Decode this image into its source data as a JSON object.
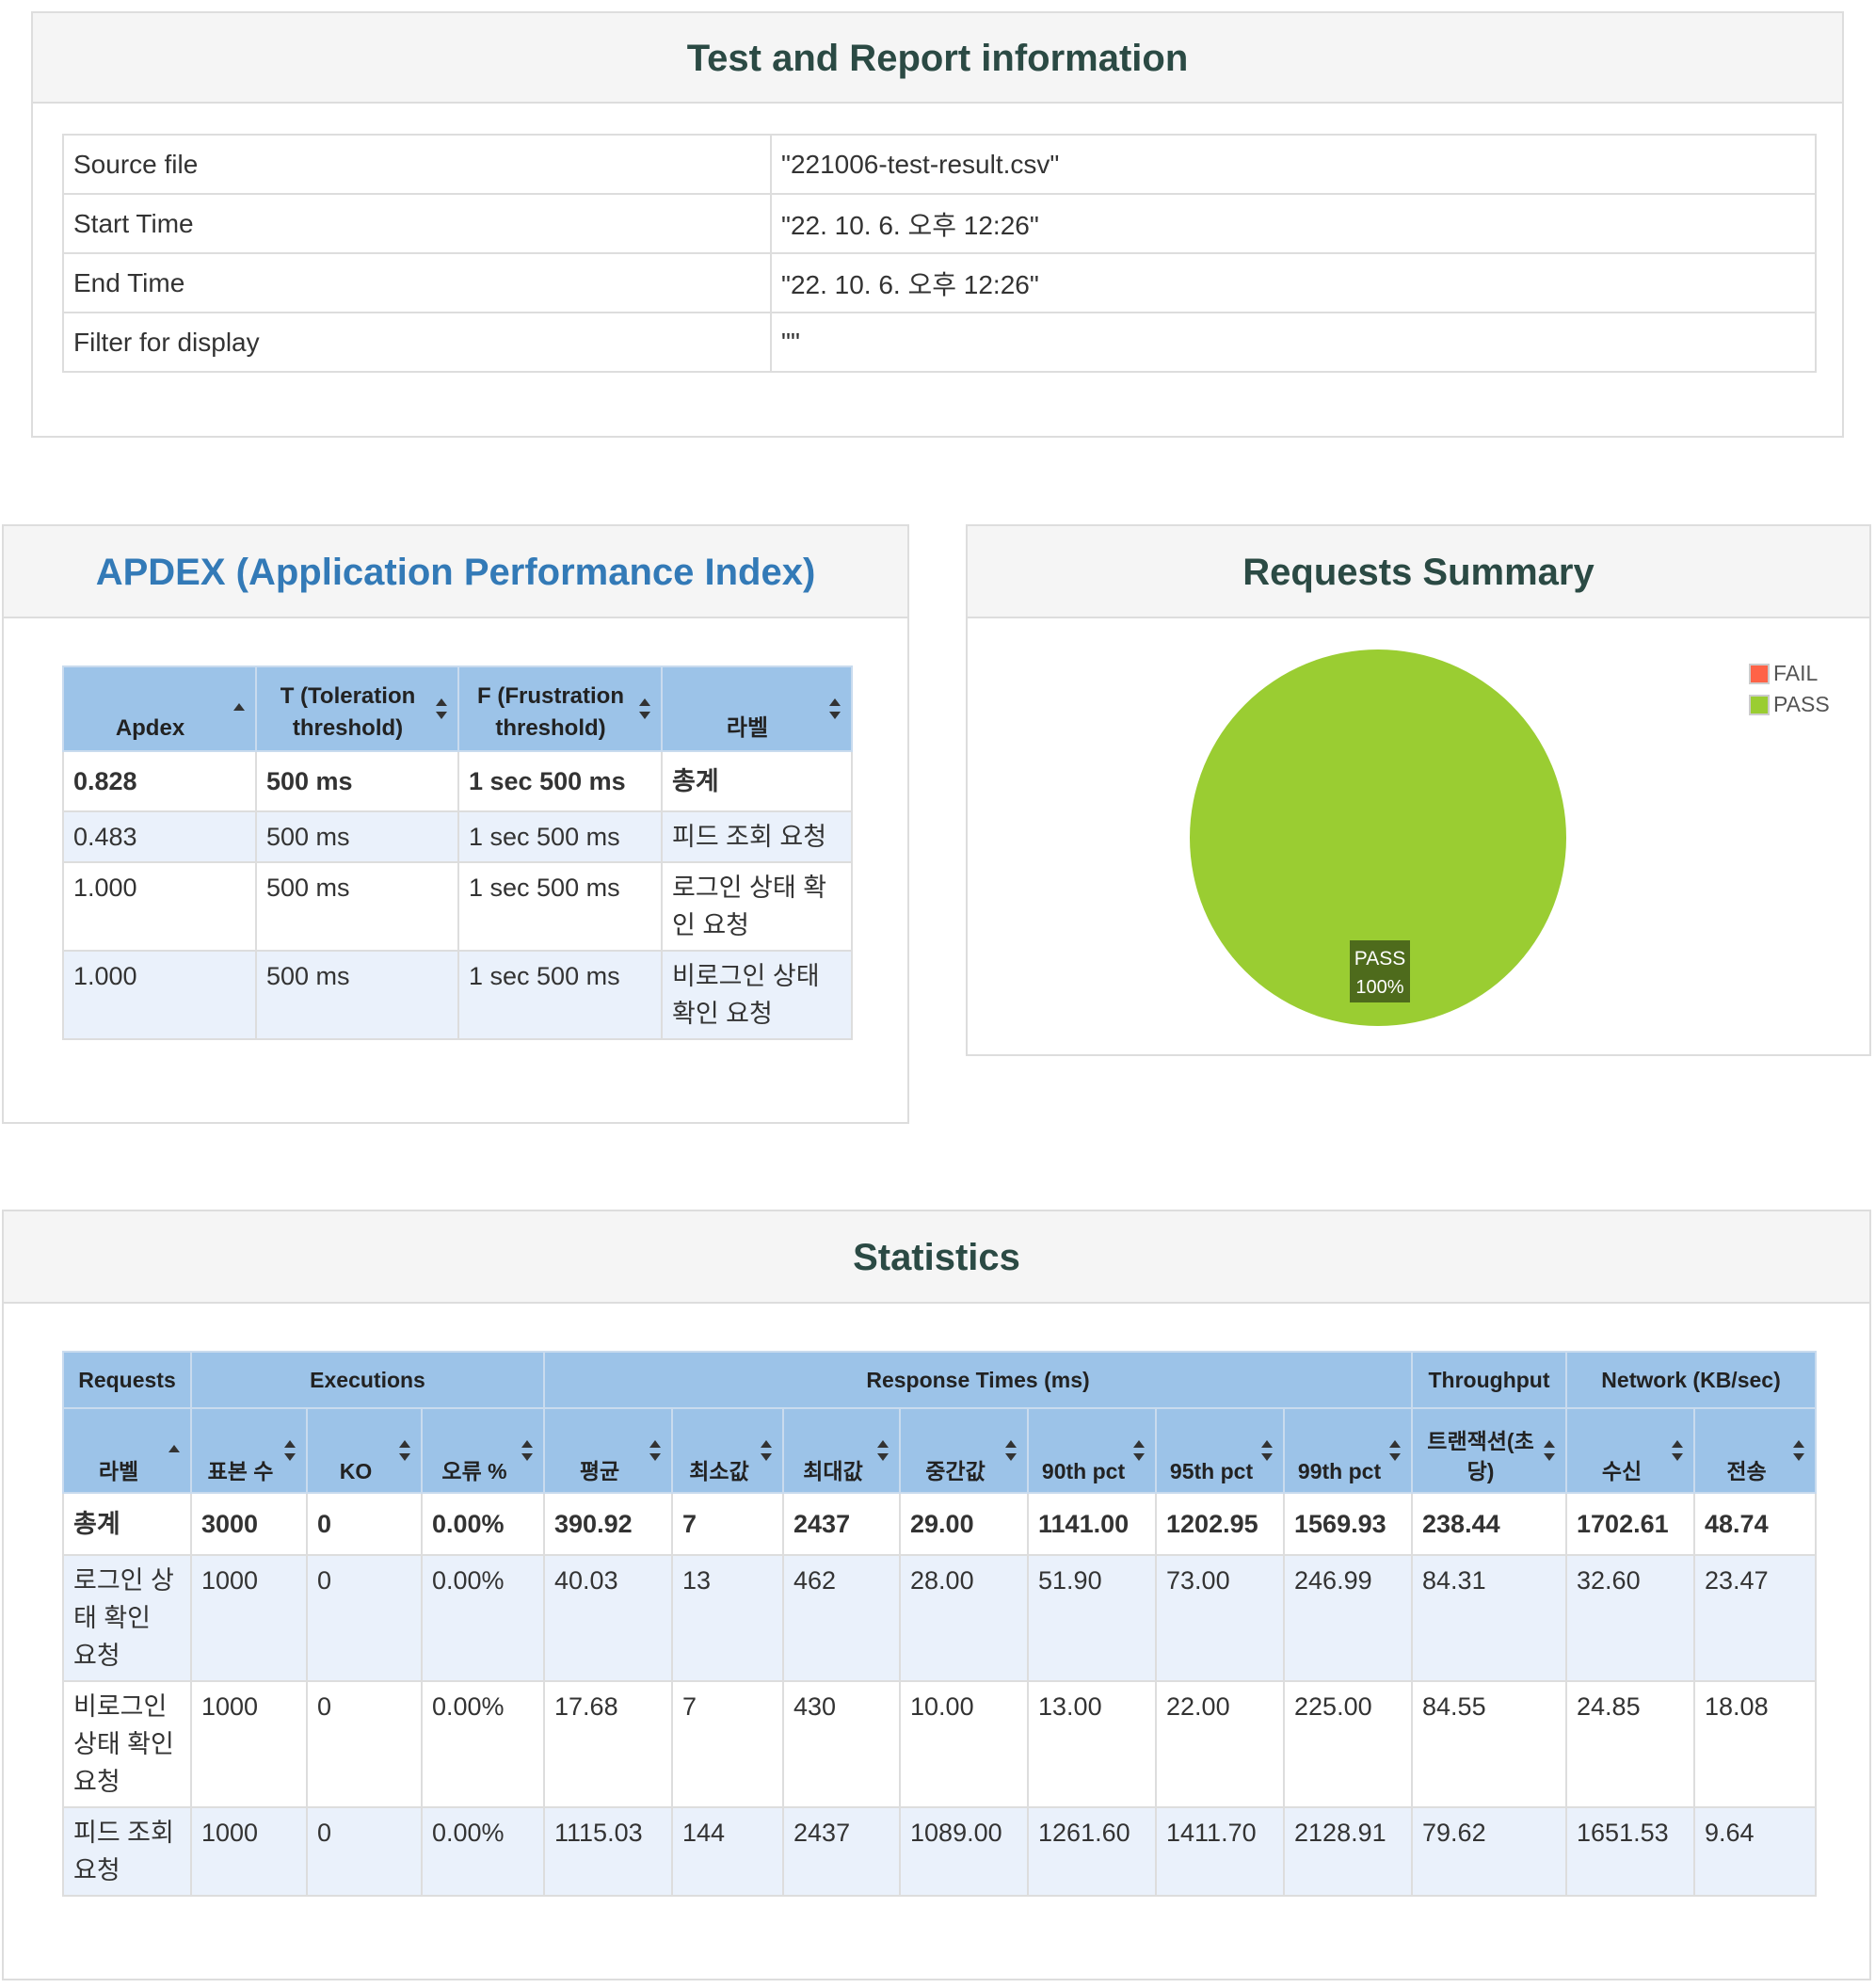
{
  "info": {
    "title": "Test and Report information",
    "rows": [
      {
        "key": "Source file",
        "value": "\"221006-test-result.csv\""
      },
      {
        "key": "Start Time",
        "value": "\"22. 10. 6. 오후 12:26\""
      },
      {
        "key": "End Time",
        "value": "\"22. 10. 6. 오후 12:26\""
      },
      {
        "key": "Filter for display",
        "value": "\"\""
      }
    ]
  },
  "apdex": {
    "title": "APDEX (Application Performance Index)",
    "headers": [
      "Apdex",
      "T (Toleration threshold)",
      "F (Frustration threshold)",
      "라벨"
    ],
    "rows": [
      [
        "0.828",
        "500 ms",
        "1 sec 500 ms",
        "총계"
      ],
      [
        "0.483",
        "500 ms",
        "1 sec 500 ms",
        "피드 조회 요청"
      ],
      [
        "1.000",
        "500 ms",
        "1 sec 500 ms",
        "로그인 상태 확인 요청"
      ],
      [
        "1.000",
        "500 ms",
        "1 sec 500 ms",
        "비로그인 상태 확인 요청"
      ]
    ]
  },
  "summary": {
    "title": "Requests Summary",
    "legend": [
      {
        "label": "FAIL",
        "color": "#ff6347"
      },
      {
        "label": "PASS",
        "color": "#9acd32"
      }
    ],
    "slice_label": "PASS",
    "slice_percent": "100%",
    "pass_color": "#9acd32",
    "fail_color": "#ff6347",
    "tooltip_bg": "#4e6b1c"
  },
  "chart_data": {
    "type": "pie",
    "title": "Requests Summary",
    "categories": [
      "FAIL",
      "PASS"
    ],
    "values": [
      0,
      100
    ],
    "legend": "top-right"
  },
  "stats": {
    "title": "Statistics",
    "groups": [
      "Requests",
      "Executions",
      "Response Times (ms)",
      "Throughput",
      "Network (KB/sec)"
    ],
    "headers": [
      "라벨",
      "표본 수",
      "KO",
      "오류 %",
      "평균",
      "최소값",
      "최대값",
      "중간값",
      "90th pct",
      "95th pct",
      "99th pct",
      "트랜잭션(초당)",
      "수신",
      "전송"
    ],
    "rows": [
      [
        "총계",
        "3000",
        "0",
        "0.00%",
        "390.92",
        "7",
        "2437",
        "29.00",
        "1141.00",
        "1202.95",
        "1569.93",
        "238.44",
        "1702.61",
        "48.74"
      ],
      [
        "로그인 상태 확인 요청",
        "1000",
        "0",
        "0.00%",
        "40.03",
        "13",
        "462",
        "28.00",
        "51.90",
        "73.00",
        "246.99",
        "84.31",
        "32.60",
        "23.47"
      ],
      [
        "비로그인 상태 확인 요청",
        "1000",
        "0",
        "0.00%",
        "17.68",
        "7",
        "430",
        "10.00",
        "13.00",
        "22.00",
        "225.00",
        "84.55",
        "24.85",
        "18.08"
      ],
      [
        "피드 조회 요청",
        "1000",
        "0",
        "0.00%",
        "1115.03",
        "144",
        "2437",
        "1089.00",
        "1261.60",
        "1411.70",
        "2128.91",
        "79.62",
        "1651.53",
        "9.64"
      ]
    ]
  }
}
